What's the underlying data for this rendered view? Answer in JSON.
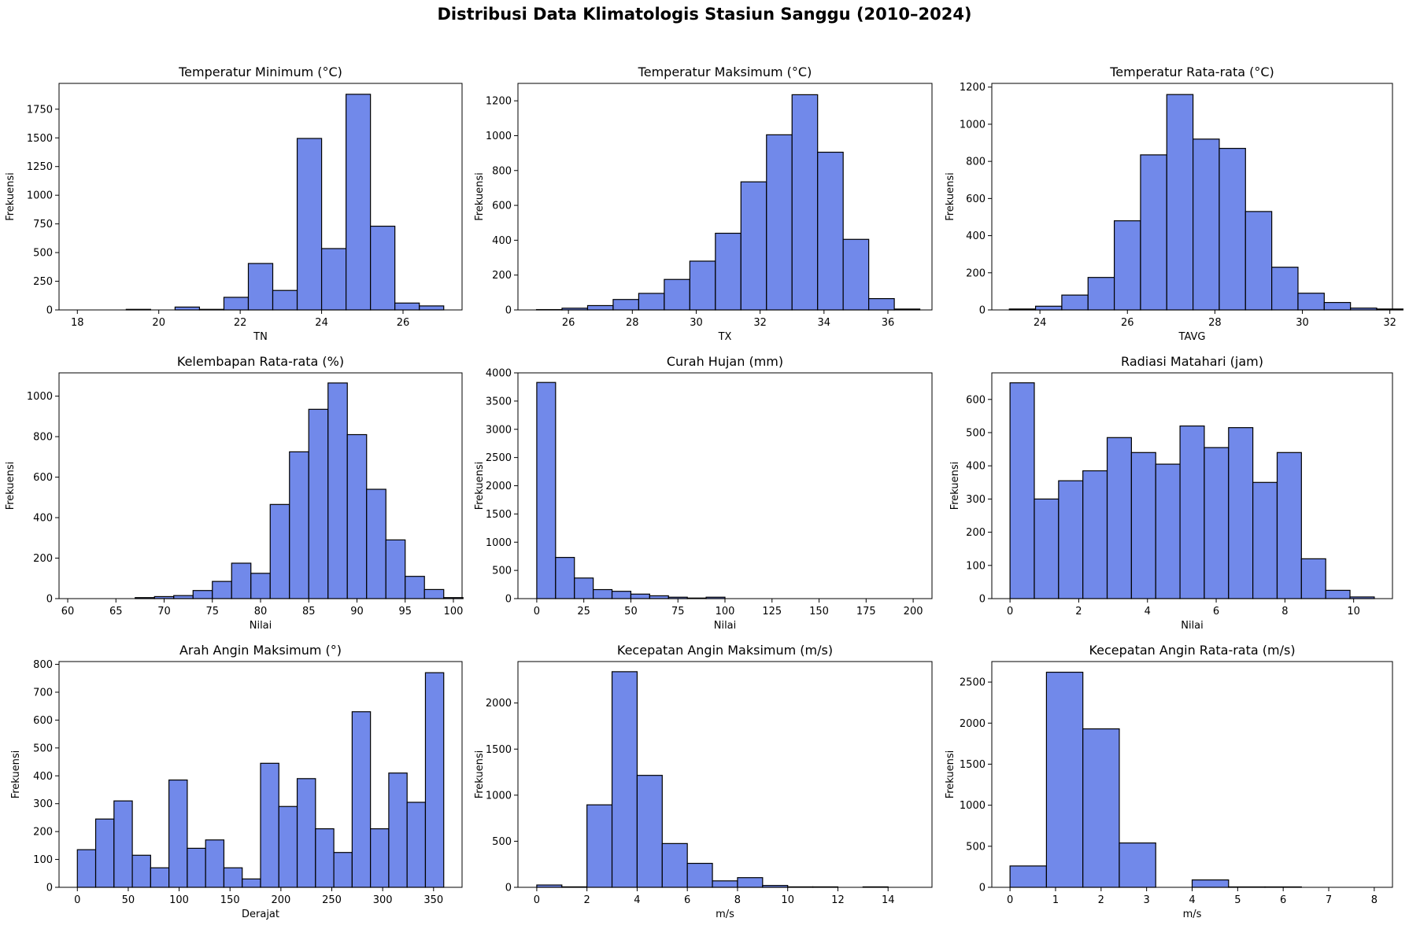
{
  "figure_title": "Distribusi Data Klimatologis Stasiun Sanggu (2010–2024)",
  "colors": {
    "bar_fill": "#7189ea",
    "bar_edge": "#000000"
  },
  "chart_data": [
    {
      "type": "bar",
      "title": "Temperatur Minimum (°C)",
      "xlabel": "TN",
      "ylabel": "Frekuensi",
      "xlim": [
        17.55,
        27.45
      ],
      "ylim": [
        0,
        1975
      ],
      "xticks": [
        18,
        20,
        22,
        24,
        26
      ],
      "yticks": [
        0,
        250,
        500,
        750,
        1000,
        1250,
        1500,
        1750
      ],
      "bin_start": 18.0,
      "bin_width": 0.6,
      "values": [
        0,
        0,
        5,
        0,
        25,
        5,
        110,
        405,
        170,
        1495,
        535,
        1880,
        730,
        60,
        35,
        0
      ]
    },
    {
      "type": "bar",
      "title": "Temperatur Maksimum (°C)",
      "xlabel": "TX",
      "ylabel": "Frekuensi",
      "xlim": [
        24.42,
        37.38
      ],
      "ylim": [
        0,
        1300
      ],
      "xticks": [
        26,
        28,
        30,
        32,
        34,
        36
      ],
      "yticks": [
        0,
        200,
        400,
        600,
        800,
        1000,
        1200
      ],
      "bin_start": 25.0,
      "bin_width": 0.8,
      "values": [
        2,
        10,
        25,
        60,
        95,
        175,
        280,
        440,
        735,
        1005,
        1235,
        905,
        405,
        65,
        5
      ]
    },
    {
      "type": "bar",
      "title": "Temperatur Rata-rata (°C)",
      "xlabel": "TAVG",
      "ylabel": "Frekuensi",
      "xlim": [
        22.9,
        32.06
      ],
      "ylim": [
        0,
        1220
      ],
      "xticks": [
        24,
        26,
        28,
        30,
        32
      ],
      "yticks": [
        0,
        200,
        400,
        600,
        800,
        1000,
        1200
      ],
      "bin_start": 23.3,
      "bin_width": 0.6,
      "values": [
        5,
        20,
        80,
        175,
        480,
        835,
        1160,
        920,
        870,
        530,
        230,
        90,
        40,
        10,
        5
      ]
    },
    {
      "type": "bar",
      "title": "Kelembapan Rata-rata (%)",
      "xlabel": "Nilai",
      "ylabel": "Frekuensi",
      "xlim": [
        59.1,
        100.9
      ],
      "ylim": [
        0,
        1115
      ],
      "xticks": [
        60,
        65,
        70,
        75,
        80,
        85,
        90,
        95,
        100
      ],
      "yticks": [
        0,
        200,
        400,
        600,
        800,
        1000
      ],
      "bin_start": 61.0,
      "bin_width": 2.0,
      "values": [
        0,
        0,
        0,
        5,
        10,
        15,
        40,
        85,
        175,
        125,
        465,
        725,
        935,
        1065,
        810,
        540,
        290,
        110,
        45,
        5
      ]
    },
    {
      "type": "bar",
      "title": "Curah Hujan (mm)",
      "xlabel": "Nilai",
      "ylabel": "Frekuensi",
      "xlim": [
        -10,
        210
      ],
      "ylim": [
        0,
        4000
      ],
      "xticks": [
        0,
        25,
        50,
        75,
        100,
        125,
        150,
        175,
        200
      ],
      "yticks": [
        0,
        500,
        1000,
        1500,
        2000,
        2500,
        3000,
        3500,
        4000
      ],
      "bin_start": 0,
      "bin_width": 10,
      "values": [
        3830,
        730,
        365,
        160,
        130,
        80,
        50,
        25,
        10,
        25,
        0,
        0,
        0,
        0,
        0,
        0,
        0,
        0,
        0,
        0
      ]
    },
    {
      "type": "bar",
      "title": "Radiasi Matahari (jam)",
      "xlabel": "Nilai",
      "ylabel": "Frekuensi",
      "xlim": [
        -0.53,
        11.13
      ],
      "ylim": [
        0,
        680
      ],
      "xticks": [
        0,
        2,
        4,
        6,
        8,
        10
      ],
      "yticks": [
        0,
        100,
        200,
        300,
        400,
        500,
        600
      ],
      "bin_start": 0,
      "bin_width": 0.7067,
      "values": [
        650,
        300,
        355,
        385,
        485,
        440,
        405,
        520,
        455,
        515,
        350,
        440,
        120,
        25,
        5
      ]
    },
    {
      "type": "bar",
      "title": "Arah Angin Maksimum (°)",
      "xlabel": "Derajat",
      "ylabel": "Frekuensi",
      "xlim": [
        -18,
        378
      ],
      "ylim": [
        0,
        810
      ],
      "xticks": [
        0,
        50,
        100,
        150,
        200,
        250,
        300,
        350
      ],
      "yticks": [
        0,
        100,
        200,
        300,
        400,
        500,
        600,
        700,
        800
      ],
      "bin_start": 0,
      "bin_width": 18,
      "values": [
        135,
        245,
        310,
        115,
        70,
        385,
        140,
        170,
        70,
        30,
        445,
        290,
        390,
        210,
        125,
        630,
        210,
        410,
        305,
        770
      ]
    },
    {
      "type": "bar",
      "title": "Kecepatan Angin Maksimum (m/s)",
      "xlabel": "m/s",
      "ylabel": "Frekuensi",
      "xlim": [
        -0.75,
        15.75
      ],
      "ylim": [
        0,
        2450
      ],
      "xticks": [
        0,
        2,
        4,
        6,
        8,
        10,
        12,
        14
      ],
      "yticks": [
        0,
        500,
        1000,
        1500,
        2000
      ],
      "bin_start": 0,
      "bin_width": 1,
      "values": [
        25,
        5,
        895,
        2340,
        1215,
        475,
        260,
        70,
        105,
        20,
        5,
        5,
        0,
        5,
        0
      ]
    },
    {
      "type": "bar",
      "title": "Kecepatan Angin Rata-rata (m/s)",
      "xlabel": "m/s",
      "ylabel": "Frekuensi",
      "xlim": [
        -0.4,
        8.4
      ],
      "ylim": [
        0,
        2750
      ],
      "xticks": [
        0,
        1,
        2,
        3,
        4,
        5,
        6,
        7,
        8
      ],
      "yticks": [
        0,
        500,
        1000,
        1500,
        2000,
        2500
      ],
      "bin_start": 0,
      "bin_width": 0.8,
      "values": [
        260,
        2620,
        1930,
        540,
        0,
        90,
        5,
        5,
        0,
        0
      ]
    }
  ]
}
